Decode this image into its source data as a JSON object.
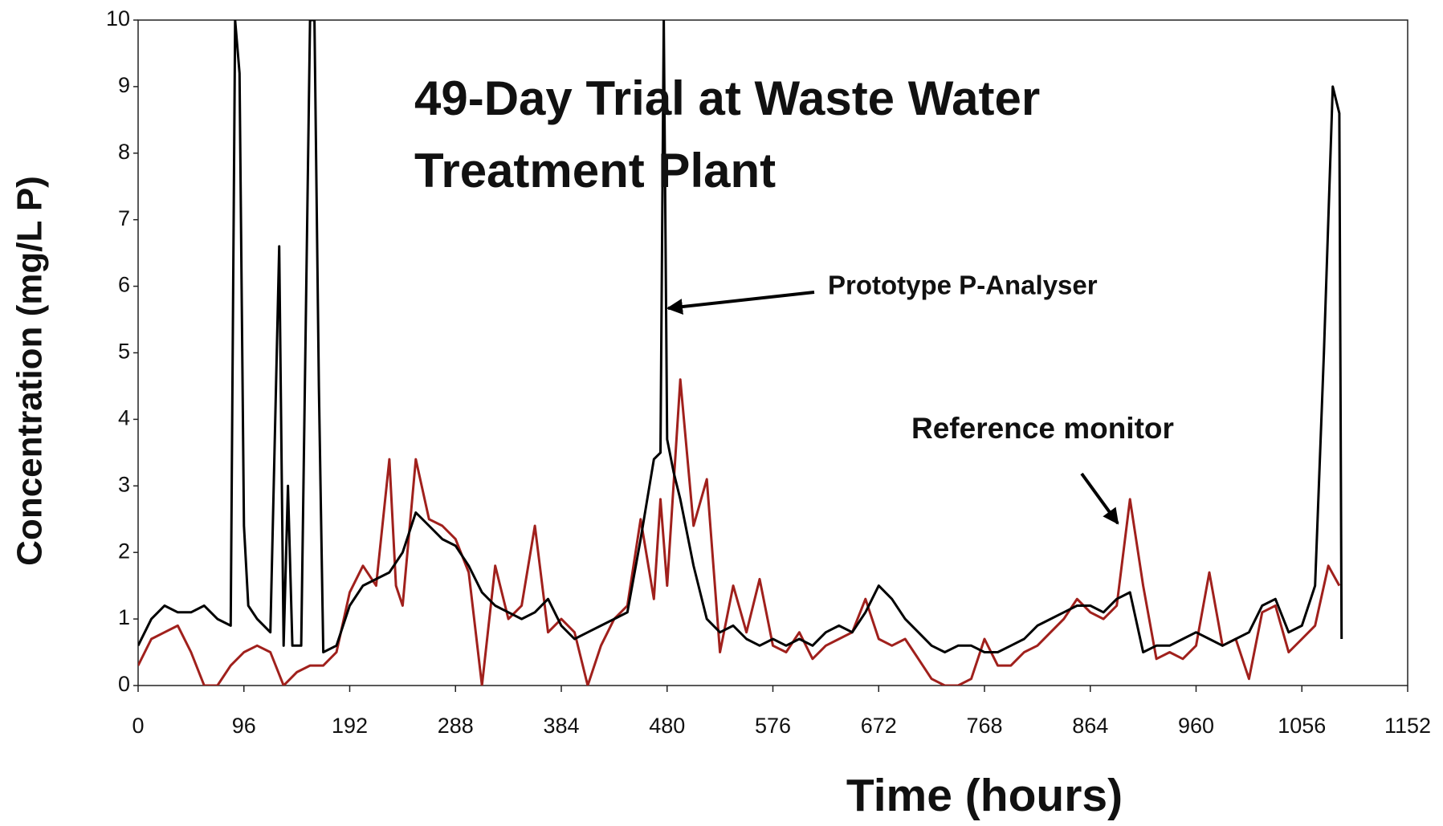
{
  "chart_data": {
    "type": "line",
    "title": "49-Day Trial at Waste Water Treatment Plant",
    "x_label": "Time (hours)",
    "y_label": "Concentration (mg/L P)",
    "annotations": [
      "Prototype P-Analyser",
      "Reference monitor"
    ],
    "xlim": [
      0,
      1152
    ],
    "xticks": [
      0,
      96,
      192,
      288,
      384,
      480,
      576,
      672,
      768,
      864,
      960,
      1056,
      1152
    ],
    "ylim": [
      0,
      10
    ],
    "yticks": [
      0,
      1,
      2,
      3,
      4,
      5,
      6,
      7,
      8,
      9,
      10
    ],
    "grid": false,
    "series": [
      {
        "name": "Prototype P-Analyser",
        "color": "#000000",
        "x": [
          0,
          12,
          24,
          36,
          48,
          60,
          72,
          84,
          88,
          92,
          96,
          100,
          108,
          120,
          128,
          132,
          136,
          140,
          148,
          156,
          160,
          164,
          168,
          180,
          192,
          204,
          216,
          228,
          240,
          252,
          264,
          276,
          288,
          300,
          312,
          324,
          336,
          348,
          360,
          372,
          384,
          396,
          408,
          420,
          432,
          444,
          456,
          468,
          474,
          477,
          480,
          486,
          492,
          504,
          516,
          528,
          540,
          552,
          564,
          576,
          588,
          600,
          612,
          624,
          636,
          648,
          660,
          672,
          684,
          696,
          708,
          720,
          732,
          744,
          756,
          768,
          780,
          792,
          804,
          816,
          828,
          840,
          852,
          864,
          876,
          888,
          900,
          912,
          924,
          936,
          948,
          960,
          972,
          984,
          996,
          1008,
          1020,
          1032,
          1044,
          1056,
          1068,
          1076,
          1084,
          1090,
          1092
        ],
        "values": [
          0.6,
          1.0,
          1.2,
          1.1,
          1.1,
          1.2,
          1.0,
          0.9,
          10,
          9.2,
          2.4,
          1.2,
          1.0,
          0.8,
          6.6,
          0.6,
          3.0,
          0.6,
          0.6,
          10,
          10,
          4.5,
          0.5,
          0.6,
          1.2,
          1.5,
          1.6,
          1.7,
          2.0,
          2.6,
          2.4,
          2.2,
          2.1,
          1.8,
          1.4,
          1.2,
          1.1,
          1.0,
          1.1,
          1.3,
          0.9,
          0.7,
          0.8,
          0.9,
          1.0,
          1.1,
          2.2,
          3.4,
          3.5,
          10,
          3.7,
          3.2,
          2.8,
          1.8,
          1.0,
          0.8,
          0.9,
          0.7,
          0.6,
          0.7,
          0.6,
          0.7,
          0.6,
          0.8,
          0.9,
          0.8,
          1.1,
          1.5,
          1.3,
          1.0,
          0.8,
          0.6,
          0.5,
          0.6,
          0.6,
          0.5,
          0.5,
          0.6,
          0.7,
          0.9,
          1.0,
          1.1,
          1.2,
          1.2,
          1.1,
          1.3,
          1.4,
          0.5,
          0.6,
          0.6,
          0.7,
          0.8,
          0.7,
          0.6,
          0.7,
          0.8,
          1.2,
          1.3,
          0.8,
          0.9,
          1.5,
          5.0,
          9.0,
          8.6,
          0.7
        ]
      },
      {
        "name": "Reference monitor",
        "color": "#a0201c",
        "x": [
          0,
          12,
          24,
          36,
          48,
          60,
          72,
          84,
          96,
          108,
          120,
          132,
          144,
          156,
          168,
          180,
          192,
          204,
          216,
          228,
          234,
          240,
          252,
          264,
          276,
          288,
          300,
          312,
          324,
          336,
          348,
          360,
          372,
          384,
          396,
          408,
          420,
          432,
          444,
          456,
          468,
          474,
          480,
          492,
          504,
          516,
          528,
          540,
          552,
          564,
          576,
          588,
          600,
          612,
          624,
          636,
          648,
          660,
          672,
          684,
          696,
          708,
          720,
          732,
          744,
          756,
          768,
          780,
          792,
          804,
          816,
          828,
          840,
          852,
          864,
          876,
          888,
          900,
          912,
          924,
          936,
          948,
          960,
          972,
          984,
          996,
          1008,
          1020,
          1032,
          1044,
          1056,
          1068,
          1080,
          1090
        ],
        "values": [
          0.3,
          0.7,
          0.8,
          0.9,
          0.5,
          0.0,
          0.0,
          0.3,
          0.5,
          0.6,
          0.5,
          0.0,
          0.2,
          0.3,
          0.3,
          0.5,
          1.4,
          1.8,
          1.5,
          3.4,
          1.5,
          1.2,
          3.4,
          2.5,
          2.4,
          2.2,
          1.7,
          0.0,
          1.8,
          1.0,
          1.2,
          2.4,
          0.8,
          1.0,
          0.8,
          0.0,
          0.6,
          1.0,
          1.2,
          2.5,
          1.3,
          2.8,
          1.5,
          4.6,
          2.4,
          3.1,
          0.5,
          1.5,
          0.8,
          1.6,
          0.6,
          0.5,
          0.8,
          0.4,
          0.6,
          0.7,
          0.8,
          1.3,
          0.7,
          0.6,
          0.7,
          0.4,
          0.1,
          0.0,
          0.0,
          0.1,
          0.7,
          0.3,
          0.3,
          0.5,
          0.6,
          0.8,
          1.0,
          1.3,
          1.1,
          1.0,
          1.2,
          2.8,
          1.5,
          0.4,
          0.5,
          0.4,
          0.6,
          1.7,
          0.6,
          0.7,
          0.1,
          1.1,
          1.2,
          0.5,
          0.7,
          0.9,
          1.8,
          1.5
        ]
      }
    ]
  }
}
